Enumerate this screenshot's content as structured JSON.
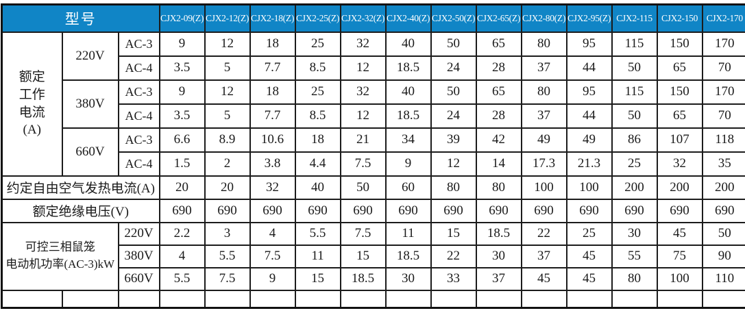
{
  "colors": {
    "header_bg": "#1085c6",
    "header_text": "#ffffff",
    "border": "#1b1b1b",
    "body_text": "#1a1a1a"
  },
  "table": {
    "header": {
      "model_label": "型号",
      "models": [
        "CJX2-09(Z)",
        "CJX2-12(Z)",
        "CJX2-18(Z)",
        "CJX2-25(Z)",
        "CJX2-32(Z)",
        "CJX2-40(Z)",
        "CJX2-50(Z)",
        "CJX2-65(Z)",
        "CJX2-80(Z)",
        "CJX2-95(Z)",
        "CJX2-115",
        "CJX2-150",
        "CJX2-170"
      ]
    },
    "rated_current": {
      "label": "额定\n工作\n电流\n(A)",
      "groups": [
        {
          "voltage": "220V",
          "rows": [
            {
              "category": "AC-3",
              "values": [
                "9",
                "12",
                "18",
                "25",
                "32",
                "40",
                "50",
                "65",
                "80",
                "95",
                "115",
                "150",
                "170"
              ]
            },
            {
              "category": "AC-4",
              "values": [
                "3.5",
                "5",
                "7.7",
                "8.5",
                "12",
                "18.5",
                "24",
                "28",
                "37",
                "44",
                "50",
                "65",
                "70"
              ]
            }
          ]
        },
        {
          "voltage": "380V",
          "rows": [
            {
              "category": "AC-3",
              "values": [
                "9",
                "12",
                "18",
                "25",
                "32",
                "40",
                "50",
                "65",
                "80",
                "95",
                "115",
                "150",
                "170"
              ]
            },
            {
              "category": "AC-4",
              "values": [
                "3.5",
                "5",
                "7.7",
                "8.5",
                "12",
                "18.5",
                "24",
                "28",
                "37",
                "44",
                "50",
                "65",
                "70"
              ]
            }
          ]
        },
        {
          "voltage": "660V",
          "rows": [
            {
              "category": "AC-3",
              "values": [
                "6.6",
                "8.9",
                "10.6",
                "18",
                "21",
                "34",
                "39",
                "42",
                "49",
                "49",
                "86",
                "107",
                "118"
              ]
            },
            {
              "category": "AC-4",
              "values": [
                "1.5",
                "2",
                "3.8",
                "4.4",
                "7.5",
                "9",
                "12",
                "14",
                "17.3",
                "21.3",
                "25",
                "32",
                "35"
              ]
            }
          ]
        }
      ]
    },
    "thermal_current": {
      "label": "约定自由空气发热电流(A)",
      "values": [
        "20",
        "20",
        "32",
        "40",
        "50",
        "60",
        "80",
        "80",
        "100",
        "100",
        "200",
        "200",
        "200"
      ]
    },
    "insulation_voltage": {
      "label": "额定绝缘电压(V)",
      "values": [
        "690",
        "690",
        "690",
        "690",
        "690",
        "690",
        "690",
        "690",
        "690",
        "690",
        "690",
        "690",
        "690"
      ]
    },
    "motor_power": {
      "label": "可控三相鼠笼\n电动机功率(AC-3)kW",
      "rows": [
        {
          "voltage": "220V",
          "values": [
            "2.2",
            "3",
            "4",
            "5.5",
            "7.5",
            "11",
            "15",
            "18.5",
            "22",
            "25",
            "30",
            "45",
            "50"
          ]
        },
        {
          "voltage": "380V",
          "values": [
            "4",
            "5.5",
            "7.5",
            "11",
            "15",
            "18.5",
            "22",
            "30",
            "37",
            "45",
            "55",
            "75",
            "90"
          ]
        },
        {
          "voltage": "660V",
          "values": [
            "5.5",
            "7.5",
            "9",
            "15",
            "18.5",
            "30",
            "33",
            "37",
            "45",
            "45",
            "80",
            "100",
            "110"
          ]
        }
      ]
    }
  }
}
